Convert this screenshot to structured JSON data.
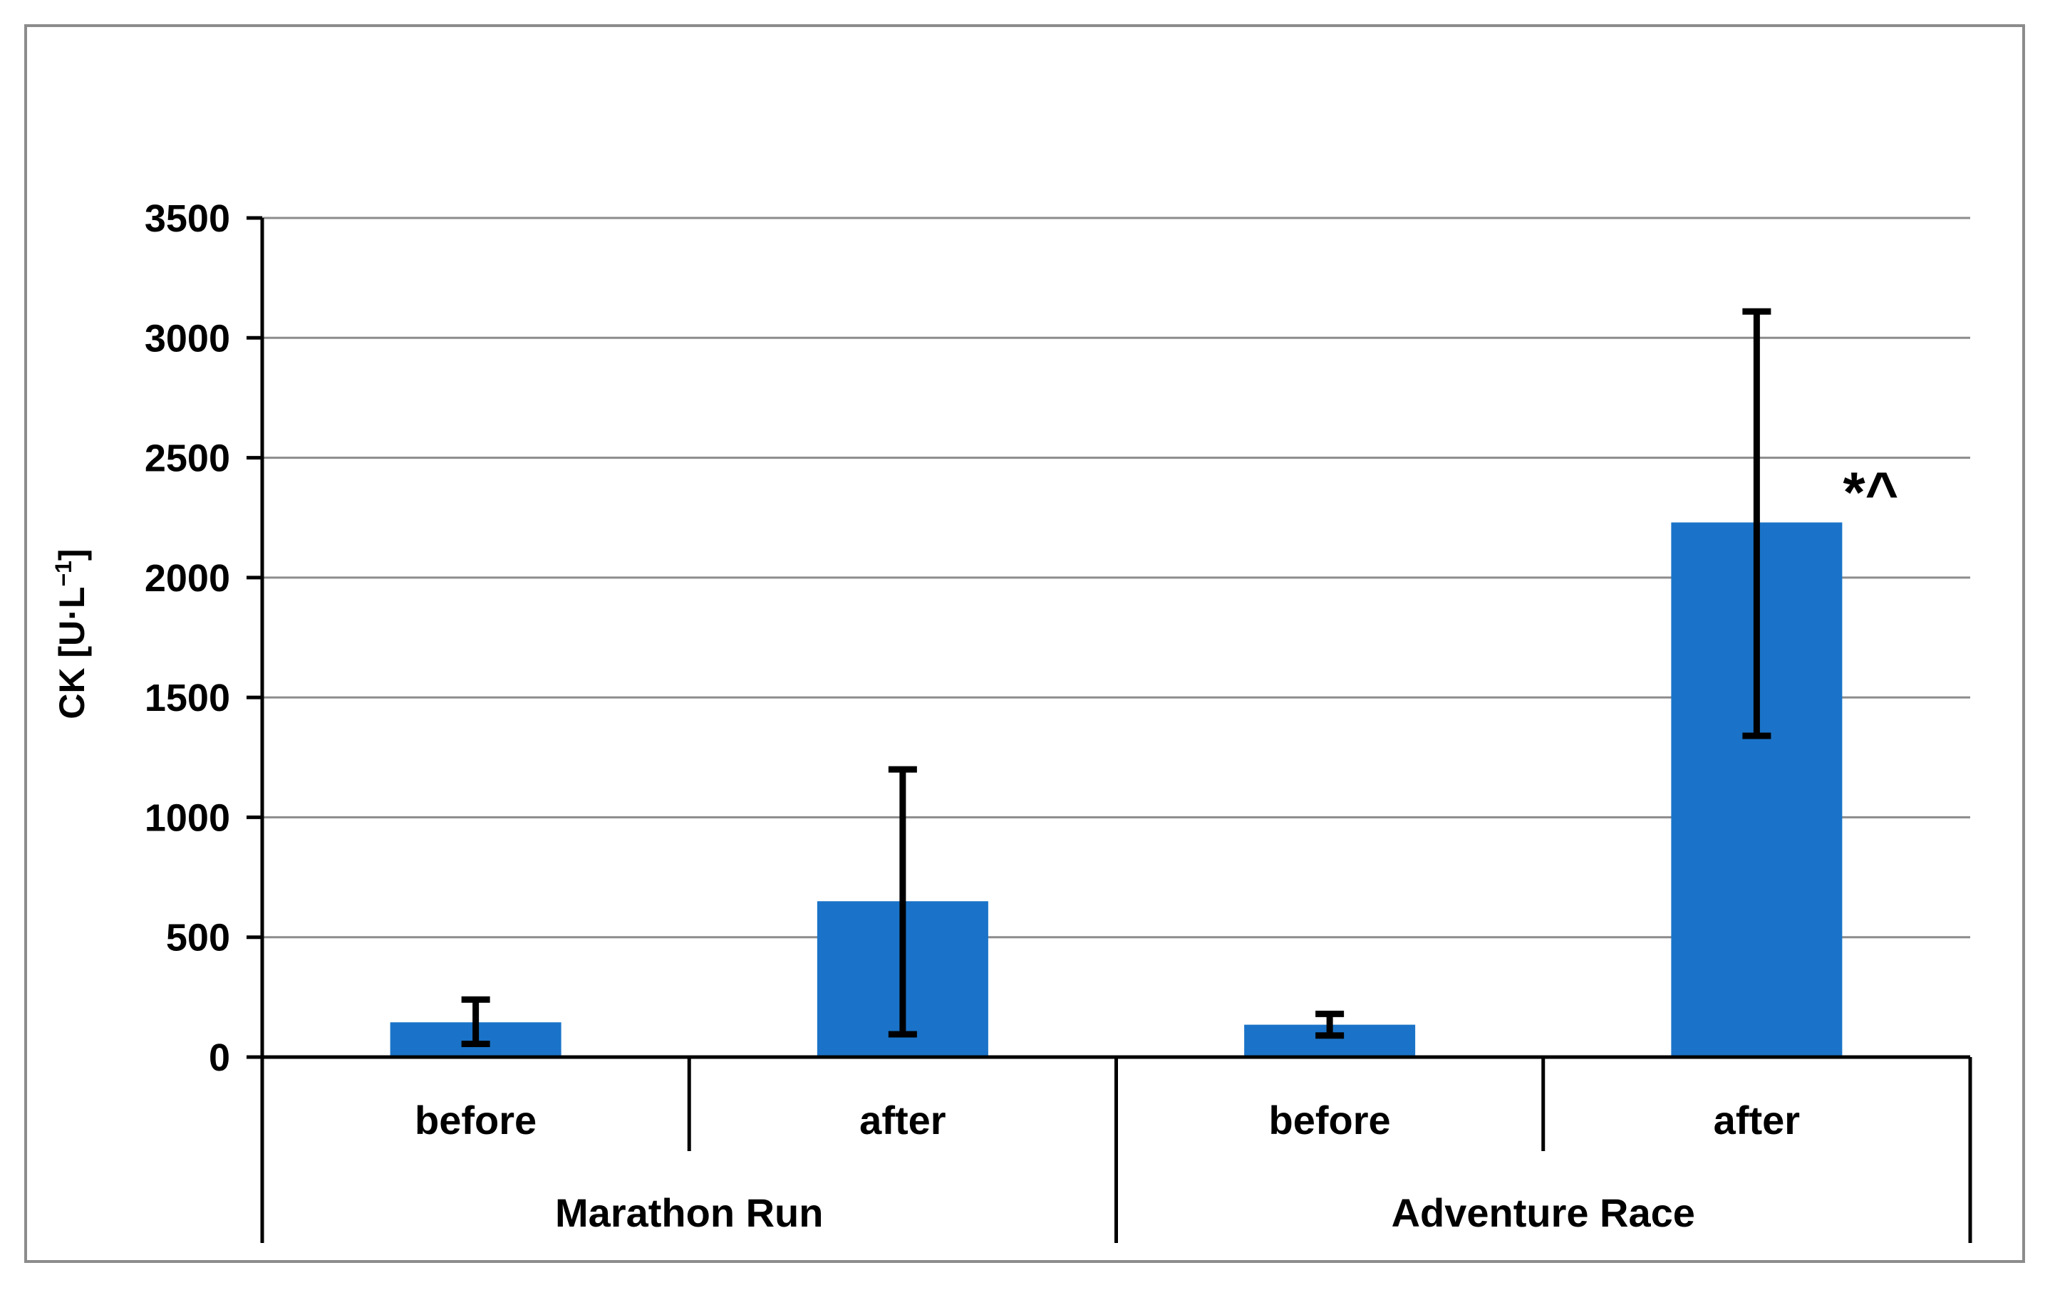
{
  "colors": {
    "bar": "#1a73c8",
    "grid": "#8c8c8c",
    "axis": "#000000",
    "frame": "#8c8c8c"
  },
  "chart_data": {
    "type": "bar",
    "title": "",
    "ylabel_main": "CK [U·L",
    "ylabel_sup": "−1",
    "ylabel_close": "]",
    "ylim": [
      0,
      3500
    ],
    "yticks": [
      0,
      500,
      1000,
      1500,
      2000,
      2500,
      3000,
      3500
    ],
    "grid": true,
    "groups": [
      {
        "label": "Marathon Run",
        "categories": [
          "before",
          "after"
        ]
      },
      {
        "label": "Adventure Race",
        "categories": [
          "before",
          "after"
        ]
      }
    ],
    "bars": [
      {
        "group": "Marathon Run",
        "category": "before",
        "value": 145,
        "error_low": 55,
        "error_high": 240
      },
      {
        "group": "Marathon Run",
        "category": "after",
        "value": 650,
        "error_low": 95,
        "error_high": 1200
      },
      {
        "group": "Adventure Race",
        "category": "before",
        "value": 135,
        "error_low": 90,
        "error_high": 180
      },
      {
        "group": "Adventure Race",
        "category": "after",
        "value": 2230,
        "error_low": 1340,
        "error_high": 3110,
        "annotation": "*^"
      }
    ]
  }
}
